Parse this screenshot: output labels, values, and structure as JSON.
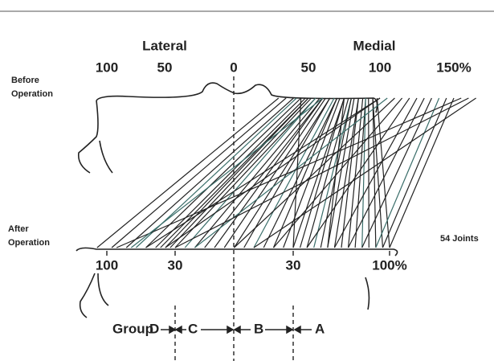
{
  "labels": {
    "lateral": "Lateral",
    "medial": "Medial",
    "before": [
      "Before",
      "Operation"
    ],
    "after": [
      "After",
      "Operation"
    ],
    "joints": "54 Joints",
    "group": "Group"
  },
  "top_scale": [
    {
      "value": -100,
      "label": "100"
    },
    {
      "value": -50,
      "label": "50"
    },
    0,
    50,
    100,
    {
      "value": 150,
      "label": "150%"
    }
  ],
  "bottom_scale": [
    {
      "value": -100,
      "label": "100"
    },
    {
      "value": -30,
      "label": "30"
    },
    30,
    {
      "value": 100,
      "label": "100%"
    }
  ],
  "groups": [
    "D",
    "C",
    "B",
    "A"
  ],
  "lines": [
    [
      30,
      -110
    ],
    [
      35,
      -95
    ],
    [
      40,
      -80
    ],
    [
      42,
      -70
    ],
    [
      45,
      -60
    ],
    [
      48,
      -50
    ],
    [
      50,
      -45
    ],
    [
      50,
      -40
    ],
    [
      52,
      -35
    ],
    [
      55,
      -30
    ],
    [
      55,
      -25
    ],
    [
      58,
      -20
    ],
    [
      60,
      -15
    ],
    [
      60,
      -10
    ],
    [
      62,
      -5
    ],
    [
      65,
      0
    ],
    [
      65,
      5
    ],
    [
      68,
      10
    ],
    [
      70,
      15
    ],
    [
      70,
      20
    ],
    [
      72,
      25
    ],
    [
      75,
      30
    ],
    [
      75,
      35
    ],
    [
      78,
      40
    ],
    [
      80,
      45
    ],
    [
      80,
      50
    ],
    [
      82,
      55
    ],
    [
      85,
      60
    ],
    [
      85,
      65
    ],
    [
      88,
      70
    ],
    [
      90,
      75
    ],
    [
      90,
      80
    ],
    [
      92,
      85
    ],
    [
      95,
      90
    ],
    [
      95,
      95
    ],
    [
      98,
      100
    ],
    [
      100,
      -60
    ],
    [
      100,
      -40
    ],
    [
      105,
      -20
    ],
    [
      110,
      0
    ],
    [
      115,
      20
    ],
    [
      120,
      40
    ],
    [
      125,
      60
    ],
    [
      130,
      70
    ],
    [
      135,
      80
    ],
    [
      140,
      90
    ],
    [
      145,
      95
    ],
    [
      150,
      100
    ],
    [
      155,
      -90
    ],
    [
      160,
      -30
    ],
    [
      165,
      10
    ],
    [
      45,
      30
    ],
    [
      60,
      -75
    ],
    [
      75,
      55
    ]
  ]
}
